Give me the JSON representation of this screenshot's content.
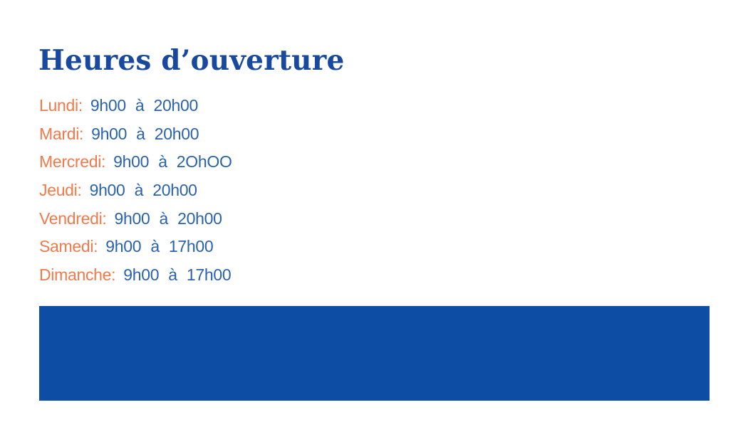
{
  "title": "Heures d’ouverture",
  "hours": [
    {
      "day": "Lundi:",
      "time": "9h00 à 20h00"
    },
    {
      "day": "Mardi:",
      "time": "9h00 à 20h00"
    },
    {
      "day": "Mercredi:",
      "time": "9h00 à 2OhOO"
    },
    {
      "day": "Jeudi:",
      "time": "9h00 à 20h00"
    },
    {
      "day": "Vendredi:",
      "time": "9h00 à 20h00"
    },
    {
      "day": "Samedi:",
      "time": "9h00 à 17h00"
    },
    {
      "day": "Dimanche:",
      "time": "9h00 à 17h00"
    }
  ],
  "colors": {
    "title": "#18499e",
    "day": "#f4794a",
    "time": "#2a62ae",
    "banner": "#0d4da3",
    "background": "#ffffff"
  }
}
